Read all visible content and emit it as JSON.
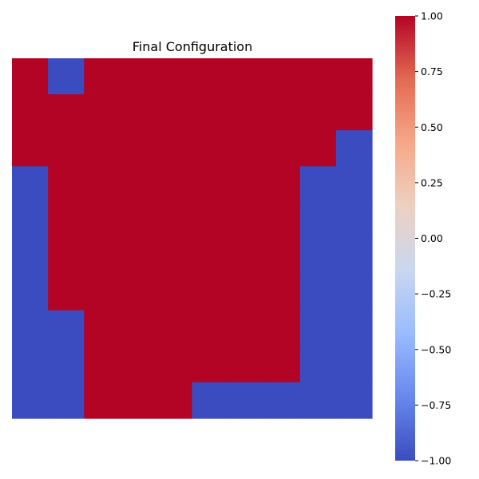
{
  "chart_data": {
    "type": "heatmap",
    "title": "Final Configuration",
    "xlabel": "",
    "ylabel": "",
    "rows": 10,
    "cols": 10,
    "values": [
      [
        1,
        -1,
        1,
        1,
        1,
        1,
        1,
        1,
        1,
        1
      ],
      [
        1,
        1,
        1,
        1,
        1,
        1,
        1,
        1,
        1,
        1
      ],
      [
        1,
        1,
        1,
        1,
        1,
        1,
        1,
        1,
        1,
        -1
      ],
      [
        -1,
        1,
        1,
        1,
        1,
        1,
        1,
        1,
        -1,
        -1
      ],
      [
        -1,
        1,
        1,
        1,
        1,
        1,
        1,
        1,
        -1,
        -1
      ],
      [
        -1,
        1,
        1,
        1,
        1,
        1,
        1,
        1,
        -1,
        -1
      ],
      [
        -1,
        1,
        1,
        1,
        1,
        1,
        1,
        1,
        -1,
        -1
      ],
      [
        -1,
        -1,
        1,
        1,
        1,
        1,
        1,
        1,
        -1,
        -1
      ],
      [
        -1,
        -1,
        1,
        1,
        1,
        1,
        1,
        1,
        -1,
        -1
      ],
      [
        -1,
        -1,
        1,
        1,
        1,
        -1,
        -1,
        -1,
        -1,
        -1
      ]
    ],
    "colorbar": {
      "min": -1.0,
      "max": 1.0,
      "ticks": [
        "1.00",
        "0.75",
        "0.50",
        "0.25",
        "0.00",
        "−0.25",
        "−0.50",
        "−0.75",
        "−1.00"
      ],
      "tick_values": [
        1.0,
        0.75,
        0.5,
        0.25,
        0.0,
        -0.25,
        -0.5,
        -0.75,
        -1.0
      ]
    },
    "colormap": {
      "name": "coolwarm",
      "stops": [
        "#3b4cc0",
        "#6788ee",
        "#9abbff",
        "#c9d7f0",
        "#edd1c2",
        "#f7a889",
        "#e36a53",
        "#b40426"
      ]
    },
    "axes_visible": false,
    "grid": false
  }
}
